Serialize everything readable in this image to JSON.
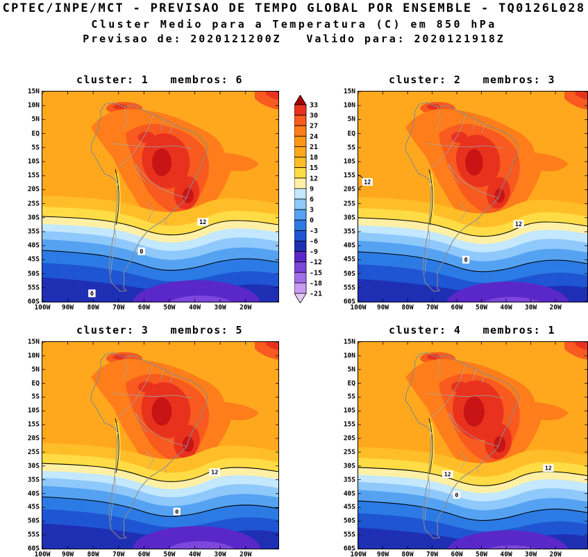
{
  "header": {
    "line1": "CPTEC/INPE/MCT - PREVISAO DE TEMPO GLOBAL POR ENSEMBLE - TQ0126L028",
    "line2": "Cluster Medio para a Temperatura (C) em 850 hPa",
    "line3": "Previsao de: 2020121200Z   Valido para: 2020121918Z"
  },
  "chart_data": {
    "type": "heatmap",
    "title": "Cluster Medio para a Temperatura (C) em 850 hPa",
    "variable": "Temperatura",
    "unit": "C",
    "level": "850 hPa",
    "model": "TQ0126L028",
    "forecast_from": "2020121200Z",
    "valid_for": "2020121918Z",
    "legend_position": "between top panels",
    "grid": false,
    "panels": [
      {
        "label": "cluster: 1   membros: 6",
        "cluster": 1,
        "membros": 6,
        "contour_labels": [
          {
            "text": "12",
            "x": 68,
            "y": 62
          },
          {
            "text": "0",
            "x": 42,
            "y": 76
          },
          {
            "text": "0",
            "x": 21,
            "y": 96
          }
        ]
      },
      {
        "label": "cluster: 2   membros: 3",
        "cluster": 2,
        "membros": 3,
        "contour_labels": [
          {
            "text": "12",
            "x": 4,
            "y": 43
          },
          {
            "text": "12",
            "x": 70,
            "y": 63
          },
          {
            "text": "0",
            "x": 47,
            "y": 80
          }
        ]
      },
      {
        "label": "cluster: 3   membros: 5",
        "cluster": 3,
        "membros": 5,
        "contour_labels": [
          {
            "text": "12",
            "x": 73,
            "y": 63
          },
          {
            "text": "0",
            "x": 57,
            "y": 82
          }
        ]
      },
      {
        "label": "cluster: 4   membros: 1",
        "cluster": 4,
        "membros": 1,
        "contour_labels": [
          {
            "text": "12",
            "x": 39,
            "y": 64
          },
          {
            "text": "12",
            "x": 83,
            "y": 61
          },
          {
            "text": "0",
            "x": 43,
            "y": 74
          }
        ]
      }
    ],
    "colorbar": {
      "values": [
        33,
        30,
        27,
        24,
        21,
        18,
        15,
        12,
        9,
        6,
        3,
        0,
        -3,
        -6,
        -9,
        -12,
        -15,
        -18,
        -21
      ],
      "colors": [
        "#A50000",
        "#E8321E",
        "#F85A1F",
        "#FF7D1A",
        "#FF9616",
        "#FFA81E",
        "#FFBE28",
        "#FFDC46",
        "#FFF0A5",
        "#C3E8FF",
        "#8FC8FB",
        "#55A2F2",
        "#2C7BE4",
        "#1F55D2",
        "#1F2FB4",
        "#5A28C8",
        "#7D46DC",
        "#A06EE8",
        "#C99CF2",
        "#E4CCFA"
      ]
    },
    "lat_ticks": [
      "15N",
      "10N",
      "5N",
      "EQ",
      "5S",
      "10S",
      "15S",
      "20S",
      "25S",
      "30S",
      "35S",
      "40S",
      "45S",
      "50S",
      "55S",
      "60S"
    ],
    "lon_ticks": [
      "100W",
      "90W",
      "80W",
      "70W",
      "60W",
      "50W",
      "40W",
      "30W",
      "20W"
    ],
    "map_line_color": "#8A8A8A",
    "contour_color": "#000000"
  }
}
